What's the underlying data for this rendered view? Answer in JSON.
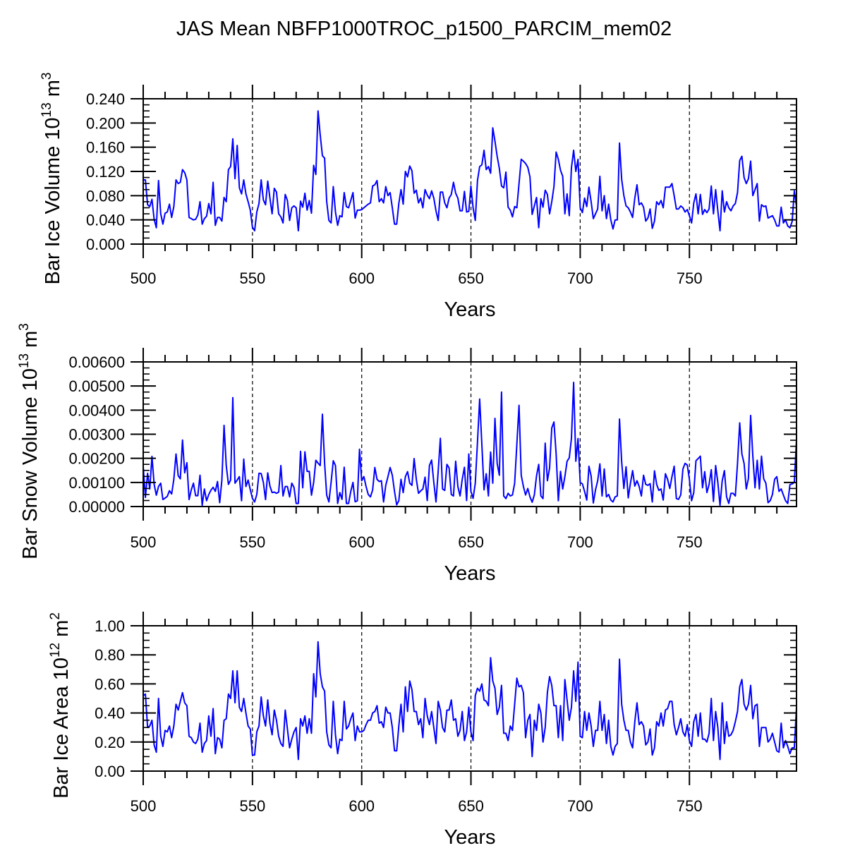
{
  "title": "JAS Mean NBFP1000TROC_p1500_PARCIM_mem02",
  "line_color": "#0000ff",
  "chart_data": [
    {
      "type": "line",
      "xlabel": "Years",
      "ylabel_parts": [
        "Bar Ice Volume 10",
        "13",
        " m",
        "3"
      ],
      "xlim": [
        500,
        799
      ],
      "ylim": [
        0,
        0.24
      ],
      "xticks": [
        500,
        550,
        600,
        650,
        700,
        750
      ],
      "xtick_labels": [
        "500",
        "550",
        "600",
        "650",
        "700",
        "750"
      ],
      "yticks": [
        0,
        0.04,
        0.08,
        0.12,
        0.16,
        0.2,
        0.24
      ],
      "ytick_labels": [
        "0.000",
        "0.040",
        "0.080",
        "0.120",
        "0.160",
        "0.200",
        "0.240"
      ],
      "yminor_step": 0.01,
      "ref_lines_x": [
        550,
        600,
        650,
        700,
        750
      ],
      "x_start": 500,
      "values": [
        0.106,
        0.106,
        0.065,
        0.062,
        0.074,
        0.041,
        0.027,
        0.105,
        0.05,
        0.033,
        0.051,
        0.053,
        0.066,
        0.044,
        0.062,
        0.106,
        0.1,
        0.102,
        0.123,
        0.118,
        0.106,
        0.044,
        0.042,
        0.04,
        0.041,
        0.048,
        0.07,
        0.033,
        0.042,
        0.046,
        0.067,
        0.05,
        0.102,
        0.031,
        0.044,
        0.044,
        0.038,
        0.077,
        0.07,
        0.123,
        0.128,
        0.174,
        0.108,
        0.163,
        0.093,
        0.083,
        0.106,
        0.083,
        0.07,
        0.056,
        0.028,
        0.022,
        0.053,
        0.067,
        0.106,
        0.073,
        0.065,
        0.104,
        0.076,
        0.05,
        0.092,
        0.086,
        0.05,
        0.045,
        0.035,
        0.082,
        0.072,
        0.039,
        0.06,
        0.063,
        0.06,
        0.022,
        0.071,
        0.061,
        0.084,
        0.056,
        0.072,
        0.051,
        0.13,
        0.115,
        0.22,
        0.18,
        0.146,
        0.142,
        0.07,
        0.039,
        0.035,
        0.095,
        0.053,
        0.031,
        0.047,
        0.045,
        0.085,
        0.062,
        0.06,
        0.072,
        0.085,
        0.043,
        0.056,
        0.056,
        0.057,
        0.06,
        0.063,
        0.066,
        0.068,
        0.096,
        0.098,
        0.105,
        0.07,
        0.075,
        0.068,
        0.095,
        0.08,
        0.085,
        0.06,
        0.033,
        0.033,
        0.067,
        0.09,
        0.066,
        0.12,
        0.111,
        0.129,
        0.121,
        0.084,
        0.089,
        0.068,
        0.076,
        0.06,
        0.09,
        0.081,
        0.075,
        0.088,
        0.076,
        0.055,
        0.039,
        0.086,
        0.086,
        0.068,
        0.06,
        0.076,
        0.082,
        0.102,
        0.084,
        0.076,
        0.055,
        0.055,
        0.087,
        0.053,
        0.054,
        0.096,
        0.06,
        0.039,
        0.105,
        0.128,
        0.131,
        0.155,
        0.123,
        0.128,
        0.117,
        0.192,
        0.17,
        0.145,
        0.125,
        0.096,
        0.093,
        0.119,
        0.061,
        0.056,
        0.045,
        0.062,
        0.06,
        0.1,
        0.14,
        0.137,
        0.133,
        0.127,
        0.111,
        0.049,
        0.063,
        0.077,
        0.027,
        0.075,
        0.061,
        0.089,
        0.082,
        0.05,
        0.07,
        0.095,
        0.152,
        0.14,
        0.122,
        0.112,
        0.05,
        0.083,
        0.047,
        0.126,
        0.155,
        0.12,
        0.14,
        0.06,
        0.052,
        0.076,
        0.062,
        0.094,
        0.07,
        0.042,
        0.05,
        0.058,
        0.112,
        0.055,
        0.08,
        0.042,
        0.066,
        0.04,
        0.025,
        0.04,
        0.04,
        0.167,
        0.107,
        0.08,
        0.063,
        0.06,
        0.053,
        0.044,
        0.076,
        0.098,
        0.065,
        0.068,
        0.061,
        0.038,
        0.043,
        0.058,
        0.026,
        0.038,
        0.07,
        0.065,
        0.072,
        0.06,
        0.094,
        0.094,
        0.094,
        0.1,
        0.08,
        0.058,
        0.058,
        0.063,
        0.06,
        0.053,
        0.057,
        0.047,
        0.035,
        0.068,
        0.083,
        0.05,
        0.082,
        0.049,
        0.057,
        0.052,
        0.058,
        0.096,
        0.05,
        0.09,
        0.055,
        0.022,
        0.088,
        0.053,
        0.07,
        0.06,
        0.055,
        0.063,
        0.067,
        0.085,
        0.138,
        0.145,
        0.11,
        0.1,
        0.108,
        0.137,
        0.08,
        0.09,
        0.1,
        0.038,
        0.065,
        0.062,
        0.063,
        0.043,
        0.045,
        0.047,
        0.04,
        0.03,
        0.03,
        0.061,
        0.035,
        0.04,
        0.03,
        0.027,
        0.037,
        0.088,
        0.062
      ]
    },
    {
      "type": "line",
      "xlabel": "Years",
      "ylabel_parts": [
        "Bar Snow Volume 10",
        "13",
        " m",
        "3"
      ],
      "xlim": [
        500,
        799
      ],
      "ylim": [
        0,
        0.006
      ],
      "xticks": [
        500,
        550,
        600,
        650,
        700,
        750
      ],
      "xtick_labels": [
        "500",
        "550",
        "600",
        "650",
        "700",
        "750"
      ],
      "yticks": [
        0,
        0.001,
        0.002,
        0.003,
        0.004,
        0.005,
        0.006
      ],
      "ytick_labels": [
        "0.00000",
        "0.00100",
        "0.00200",
        "0.00300",
        "0.00400",
        "0.00500",
        "0.00600"
      ],
      "yminor_step": 0.00025,
      "ref_lines_x": [
        550,
        600,
        650,
        700,
        750
      ],
      "x_start": 500,
      "values": [
        0.00165,
        0.00038,
        0.00138,
        0.00073,
        0.00208,
        0.00092,
        0.00047,
        0.00083,
        0.00097,
        0.00029,
        0.00035,
        0.00042,
        0.00066,
        0.00052,
        0.00113,
        0.00218,
        0.00128,
        0.00115,
        0.00276,
        0.0014,
        0.00182,
        0.00029,
        0.00069,
        0.00097,
        0.00045,
        0.00045,
        0.0013,
        5e-05,
        0.00073,
        0.00024,
        0.0005,
        0.00068,
        0.0008,
        0.00063,
        0.00104,
        0.00016,
        0.0011,
        0.00337,
        0.0017,
        0.00092,
        0.0011,
        0.00452,
        0.00097,
        0.0011,
        0.00124,
        0.00024,
        0.00197,
        0.00083,
        0.0011,
        0.0007,
        0.00034,
        0.00019,
        0.0005,
        0.00138,
        0.00137,
        0.001,
        0.00029,
        0.0014,
        0.00085,
        0.00058,
        0.0006,
        0.00055,
        0.0006,
        0.0017,
        0.00044,
        0.00083,
        0.00083,
        0.0004,
        0.00097,
        0.0008,
        0.00013,
        0.00013,
        0.00229,
        0.00078,
        0.00227,
        0.00146,
        0.00146,
        0.00047,
        0.001,
        0.00192,
        0.0018,
        0.0017,
        0.00383,
        0.0018,
        0.00047,
        0.00019,
        0.001,
        0.0019,
        0.0017,
        0.00013,
        0.00058,
        0.0003,
        0.00163,
        0.00013,
        0.00013,
        0.00063,
        0.001,
        0.0002,
        0.00024,
        0.00238,
        0.00107,
        0.00124,
        0.00083,
        0.0005,
        0.0004,
        0.00069,
        0.00162,
        0.00113,
        0.00104,
        0.00107,
        0.00019,
        0.00088,
        0.00124,
        0.00162,
        0.0013,
        0.00063,
        7e-05,
        0.00024,
        0.00113,
        0.00058,
        0.00124,
        0.00145,
        0.00097,
        0.00088,
        0.00199,
        0.00113,
        0.00055,
        0.00065,
        0.00073,
        0.00122,
        0.00025,
        0.0017,
        0.00193,
        0.001,
        0.00019,
        0.00146,
        0.00283,
        0.00073,
        0.00067,
        0.00175,
        0.0016,
        0.0005,
        0.00044,
        0.00188,
        0.00083,
        0.00044,
        0.00113,
        0.00163,
        0.00025,
        0.00218,
        0.00063,
        0.00034,
        0.00097,
        0.00267,
        0.00446,
        0.00258,
        0.00069,
        0.00136,
        0.00044,
        0.00226,
        0.00097,
        0.00366,
        0.00179,
        0.0013,
        0.00475,
        0.00044,
        0.00033,
        0.00055,
        0.00044,
        0.00048,
        0.00097,
        0.00258,
        0.0042,
        0.0013,
        0.00083,
        0.00048,
        0.00075,
        0.0004,
        0.00018,
        0.00048,
        0.00127,
        0.00175,
        0.00044,
        0.00033,
        0.00263,
        0.00107,
        0.0016,
        0.00326,
        0.00351,
        0.00218,
        0.00024,
        0.00146,
        0.00073,
        0.00124,
        0.00188,
        0.00202,
        0.00283,
        0.00515,
        0.00188,
        0.00282,
        0.001,
        0.00094,
        0.00063,
        0.00027,
        0.00167,
        0.00127,
        0.00015,
        0.00069,
        0.00107,
        0.00177,
        0.00044,
        0.00156,
        0.0004,
        0.0005,
        0.00027,
        0.00019,
        0.0004,
        0.00044,
        0.00363,
        0.00185,
        0.00075,
        0.00165,
        0.00036,
        0.00097,
        0.00149,
        0.00085,
        0.00107,
        0.00083,
        0.00044,
        0.0013,
        0.00092,
        0.00088,
        0.00095,
        0.00019,
        0.00148,
        0.00092,
        0.00067,
        0.00073,
        0.00027,
        0.00136,
        0.00113,
        0.00075,
        0.00124,
        0.00167,
        0.00033,
        0.0003,
        0.00048,
        0.00156,
        0.00179,
        0.00172,
        0.00113,
        0.00024,
        0.00058,
        0.0019,
        0.00199,
        0.00209,
        0.00078,
        0.00145,
        0.00058,
        0.00092,
        0.00153,
        0.00021,
        0.0017,
        0.001,
        5e-05,
        0.00107,
        0.00149,
        0.0004,
        0.00013,
        0.00055,
        0.00055,
        0.00044,
        0.00179,
        0.00347,
        0.00218,
        0.00179,
        0.00073,
        0.00117,
        0.00378,
        0.00209,
        0.00078,
        0.00192,
        0.00073,
        0.00209,
        0.00115,
        0.00097,
        0.00016,
        0.00025,
        0.0005,
        0.00113,
        0.00124,
        0.00063,
        0.00073,
        0.00048,
        0.00024,
        0.00013,
        0.00091,
        0.00094,
        0.001,
        0.00278
      ]
    },
    {
      "type": "line",
      "xlabel": "Years",
      "ylabel_parts": [
        "Bar Ice Area 10",
        "12",
        " m",
        "2"
      ],
      "xlim": [
        500,
        799
      ],
      "ylim": [
        0,
        1.0
      ],
      "xticks": [
        500,
        550,
        600,
        650,
        700,
        750
      ],
      "xtick_labels": [
        "500",
        "550",
        "600",
        "650",
        "700",
        "750"
      ],
      "yticks": [
        0,
        0.2,
        0.4,
        0.6,
        0.8,
        1.0
      ],
      "ytick_labels": [
        "0.00",
        "0.20",
        "0.40",
        "0.60",
        "0.80",
        "1.00"
      ],
      "yminor_step": 0.05,
      "ref_lines_x": [
        550,
        600,
        650,
        700,
        750
      ],
      "x_start": 500,
      "values": [
        0.52,
        0.53,
        0.3,
        0.31,
        0.35,
        0.18,
        0.13,
        0.5,
        0.24,
        0.17,
        0.28,
        0.27,
        0.31,
        0.23,
        0.31,
        0.46,
        0.42,
        0.48,
        0.54,
        0.47,
        0.45,
        0.24,
        0.23,
        0.2,
        0.19,
        0.22,
        0.33,
        0.13,
        0.19,
        0.21,
        0.38,
        0.24,
        0.43,
        0.12,
        0.23,
        0.22,
        0.16,
        0.35,
        0.36,
        0.53,
        0.5,
        0.69,
        0.47,
        0.69,
        0.44,
        0.41,
        0.5,
        0.4,
        0.31,
        0.29,
        0.11,
        0.11,
        0.27,
        0.31,
        0.51,
        0.38,
        0.31,
        0.49,
        0.33,
        0.25,
        0.42,
        0.35,
        0.24,
        0.19,
        0.17,
        0.42,
        0.29,
        0.16,
        0.22,
        0.27,
        0.3,
        0.08,
        0.36,
        0.31,
        0.38,
        0.26,
        0.36,
        0.26,
        0.67,
        0.51,
        0.89,
        0.67,
        0.58,
        0.55,
        0.27,
        0.18,
        0.16,
        0.48,
        0.25,
        0.12,
        0.22,
        0.21,
        0.48,
        0.29,
        0.31,
        0.36,
        0.4,
        0.21,
        0.31,
        0.27,
        0.27,
        0.28,
        0.32,
        0.35,
        0.35,
        0.4,
        0.41,
        0.45,
        0.33,
        0.34,
        0.3,
        0.44,
        0.4,
        0.4,
        0.3,
        0.14,
        0.14,
        0.31,
        0.46,
        0.27,
        0.58,
        0.41,
        0.62,
        0.56,
        0.41,
        0.41,
        0.32,
        0.36,
        0.23,
        0.5,
        0.38,
        0.32,
        0.41,
        0.3,
        0.19,
        0.48,
        0.42,
        0.3,
        0.27,
        0.42,
        0.42,
        0.49,
        0.35,
        0.36,
        0.24,
        0.28,
        0.41,
        0.21,
        0.27,
        0.44,
        0.27,
        0.21,
        0.52,
        0.57,
        0.55,
        0.6,
        0.49,
        0.48,
        0.45,
        0.78,
        0.62,
        0.57,
        0.39,
        0.44,
        0.59,
        0.26,
        0.26,
        0.21,
        0.31,
        0.28,
        0.46,
        0.64,
        0.58,
        0.59,
        0.54,
        0.23,
        0.35,
        0.39,
        0.1,
        0.35,
        0.28,
        0.46,
        0.4,
        0.2,
        0.3,
        0.54,
        0.65,
        0.59,
        0.45,
        0.45,
        0.23,
        0.45,
        0.21,
        0.63,
        0.49,
        0.35,
        0.44,
        0.69,
        0.48,
        0.75,
        0.24,
        0.23,
        0.41,
        0.28,
        0.4,
        0.31,
        0.17,
        0.28,
        0.28,
        0.48,
        0.28,
        0.39,
        0.19,
        0.35,
        0.17,
        0.11,
        0.17,
        0.19,
        0.77,
        0.46,
        0.35,
        0.28,
        0.28,
        0.2,
        0.16,
        0.34,
        0.47,
        0.32,
        0.34,
        0.31,
        0.18,
        0.2,
        0.29,
        0.11,
        0.16,
        0.34,
        0.31,
        0.4,
        0.31,
        0.42,
        0.43,
        0.48,
        0.48,
        0.32,
        0.25,
        0.3,
        0.36,
        0.27,
        0.24,
        0.32,
        0.21,
        0.17,
        0.34,
        0.39,
        0.24,
        0.4,
        0.22,
        0.22,
        0.2,
        0.26,
        0.5,
        0.21,
        0.41,
        0.3,
        0.08,
        0.47,
        0.19,
        0.34,
        0.24,
        0.25,
        0.28,
        0.34,
        0.41,
        0.58,
        0.63,
        0.46,
        0.42,
        0.46,
        0.59,
        0.36,
        0.45,
        0.46,
        0.17,
        0.3,
        0.3,
        0.3,
        0.2,
        0.22,
        0.26,
        0.2,
        0.14,
        0.13,
        0.33,
        0.16,
        0.21,
        0.17,
        0.12,
        0.16,
        0.16,
        0.44
      ]
    }
  ]
}
